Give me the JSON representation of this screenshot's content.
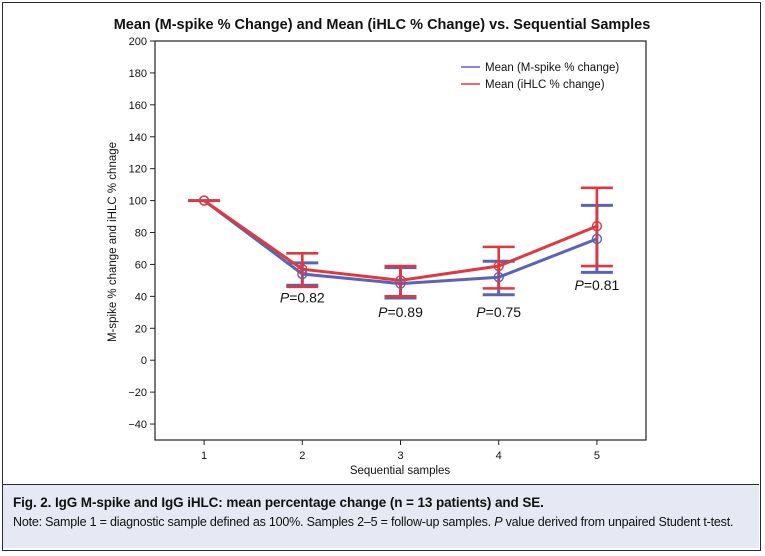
{
  "chart_data": {
    "type": "line",
    "title": "Mean (M-spike % Change) and Mean (iHLC % Change) vs. Sequential Samples",
    "xlabel": "Sequential samples",
    "ylabel": "M-spike % change and iHLC % chnage",
    "x": [
      1,
      2,
      3,
      4,
      5
    ],
    "xlim": [
      0.5,
      5.5
    ],
    "ylim": [
      -50,
      200
    ],
    "yticks": [
      -40,
      -20,
      0,
      20,
      40,
      60,
      80,
      100,
      120,
      140,
      160,
      180,
      200
    ],
    "grid": false,
    "legend_position": "top-right",
    "series": [
      {
        "name": "Mean (M-spike % change)",
        "color": "#5b63b8",
        "values": [
          100,
          54,
          48,
          52,
          76
        ],
        "err_upper": [
          100,
          61,
          58,
          62,
          97
        ],
        "err_lower": [
          100,
          47,
          39,
          41,
          55
        ]
      },
      {
        "name": "Mean (iHLC % change)",
        "color": "#e0383e",
        "values": [
          100,
          57,
          50,
          59,
          84
        ],
        "err_upper": [
          100,
          67,
          59,
          71,
          108
        ],
        "err_lower": [
          100,
          46,
          40,
          45,
          59
        ]
      }
    ],
    "annotations": [
      {
        "x": 2,
        "label": "P=0.82",
        "y": 36
      },
      {
        "x": 3,
        "label": "P=0.89",
        "y": 27
      },
      {
        "x": 4,
        "label": "P=0.75",
        "y": 27
      },
      {
        "x": 5,
        "label": "P=0.81",
        "y": 44
      }
    ]
  },
  "caption": {
    "title": "Fig. 2.  IgG M-spike and IgG iHLC: mean percentage change (n = 13 patients) and SE.",
    "note_prefix": "Note: Sample 1 = diagnostic sample defined as 100%. Samples 2–5 = follow-up samples. ",
    "note_p": "P",
    "note_suffix": " value derived from unpaired Student t-test."
  }
}
